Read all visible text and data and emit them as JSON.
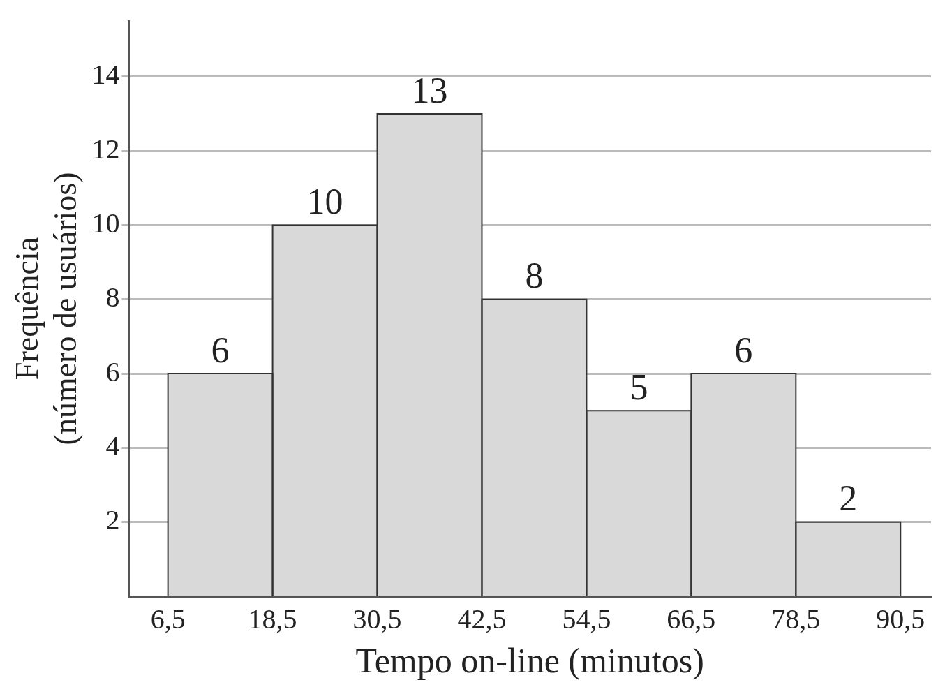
{
  "chart_data": {
    "type": "histogram",
    "bins": [
      6.5,
      18.5,
      30.5,
      42.5,
      54.5,
      66.5,
      78.5,
      90.5
    ],
    "values": [
      6,
      10,
      13,
      8,
      5,
      6,
      2
    ],
    "color": "#d9d9d9",
    "data_labels": true,
    "xlabel": "Tempo on-line (minutos)",
    "ylabel": "Frequência\n(número de usuários)",
    "xlim": [
      2,
      94
    ],
    "xticks": [
      {
        "value": 6.5,
        "label": "6,5"
      },
      {
        "value": 18.5,
        "label": "18,5"
      },
      {
        "value": 30.5,
        "label": "30,5"
      },
      {
        "value": 42.5,
        "label": "42,5"
      },
      {
        "value": 54.5,
        "label": "54,5"
      },
      {
        "value": 66.5,
        "label": "66,5"
      },
      {
        "value": 78.5,
        "label": "78,5"
      },
      {
        "value": 90.5,
        "label": "90,5"
      }
    ],
    "ylim": [
      0,
      15.5
    ],
    "yticks": [
      2,
      4,
      6,
      8,
      10,
      12,
      14
    ],
    "grid": "y",
    "legend": false
  }
}
